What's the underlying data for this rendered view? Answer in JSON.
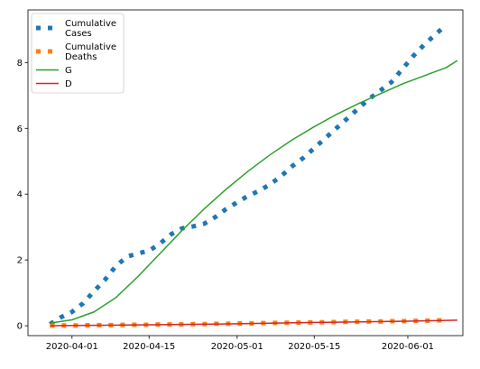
{
  "chart_data": {
    "type": "line",
    "grid": false,
    "legend_placement": "top-left",
    "xlabel": "",
    "ylabel": "",
    "title": "",
    "x_range": [
      "2020-03-24",
      "2020-06-11"
    ],
    "ylim": [
      -0.3,
      9.6
    ],
    "x_ticks": [
      {
        "date": "2020-04-01",
        "label": "2020-04-01"
      },
      {
        "date": "2020-04-15",
        "label": "2020-04-15"
      },
      {
        "date": "2020-05-01",
        "label": "2020-05-01"
      },
      {
        "date": "2020-05-15",
        "label": "2020-05-15"
      },
      {
        "date": "2020-06-01",
        "label": "2020-06-01"
      }
    ],
    "y_ticks": [
      0,
      2,
      4,
      6,
      8
    ],
    "series": [
      {
        "name": "Cumulative\nCases",
        "legend_lines": [
          "Cumulative",
          "Cases"
        ],
        "style": "dotted",
        "color": "#1f77b4",
        "points": [
          [
            "2020-03-28",
            0.05
          ],
          [
            "2020-03-30",
            0.26
          ],
          [
            "2020-04-01",
            0.42
          ],
          [
            "2020-04-03",
            0.68
          ],
          [
            "2020-04-05",
            1.05
          ],
          [
            "2020-04-07",
            1.4
          ],
          [
            "2020-04-09",
            1.82
          ],
          [
            "2020-04-11",
            2.1
          ],
          [
            "2020-04-13",
            2.2
          ],
          [
            "2020-04-15",
            2.28
          ],
          [
            "2020-04-17",
            2.5
          ],
          [
            "2020-04-19",
            2.78
          ],
          [
            "2020-04-21",
            2.96
          ],
          [
            "2020-04-23",
            3.02
          ],
          [
            "2020-04-25",
            3.1
          ],
          [
            "2020-04-27",
            3.3
          ],
          [
            "2020-04-29",
            3.55
          ],
          [
            "2020-05-01",
            3.75
          ],
          [
            "2020-05-03",
            3.95
          ],
          [
            "2020-05-05",
            4.1
          ],
          [
            "2020-05-07",
            4.3
          ],
          [
            "2020-05-09",
            4.55
          ],
          [
            "2020-05-11",
            4.85
          ],
          [
            "2020-05-13",
            5.1
          ],
          [
            "2020-05-15",
            5.4
          ],
          [
            "2020-05-17",
            5.7
          ],
          [
            "2020-05-19",
            6.0
          ],
          [
            "2020-05-21",
            6.3
          ],
          [
            "2020-05-23",
            6.6
          ],
          [
            "2020-05-25",
            6.9
          ],
          [
            "2020-05-27",
            7.15
          ],
          [
            "2020-05-29",
            7.4
          ],
          [
            "2020-05-31",
            7.8
          ],
          [
            "2020-06-02",
            8.2
          ],
          [
            "2020-06-04",
            8.55
          ],
          [
            "2020-06-06",
            8.85
          ],
          [
            "2020-06-08",
            9.15
          ]
        ]
      },
      {
        "name": "Cumulative\nDeaths",
        "legend_lines": [
          "Cumulative",
          "Deaths"
        ],
        "style": "dotted",
        "color": "#ff7f0e",
        "points": [
          [
            "2020-03-28",
            0.0
          ],
          [
            "2020-03-30",
            0.01
          ],
          [
            "2020-04-01",
            0.01
          ],
          [
            "2020-04-03",
            0.01
          ],
          [
            "2020-04-05",
            0.02
          ],
          [
            "2020-04-07",
            0.02
          ],
          [
            "2020-04-09",
            0.02
          ],
          [
            "2020-04-11",
            0.03
          ],
          [
            "2020-04-13",
            0.03
          ],
          [
            "2020-04-15",
            0.03
          ],
          [
            "2020-04-17",
            0.04
          ],
          [
            "2020-04-19",
            0.04
          ],
          [
            "2020-04-21",
            0.04
          ],
          [
            "2020-04-23",
            0.05
          ],
          [
            "2020-04-25",
            0.05
          ],
          [
            "2020-04-27",
            0.06
          ],
          [
            "2020-04-29",
            0.06
          ],
          [
            "2020-05-01",
            0.07
          ],
          [
            "2020-05-03",
            0.07
          ],
          [
            "2020-05-05",
            0.08
          ],
          [
            "2020-05-07",
            0.08
          ],
          [
            "2020-05-09",
            0.09
          ],
          [
            "2020-05-11",
            0.09
          ],
          [
            "2020-05-13",
            0.1
          ],
          [
            "2020-05-15",
            0.1
          ],
          [
            "2020-05-17",
            0.11
          ],
          [
            "2020-05-19",
            0.11
          ],
          [
            "2020-05-21",
            0.12
          ],
          [
            "2020-05-23",
            0.12
          ],
          [
            "2020-05-25",
            0.13
          ],
          [
            "2020-05-27",
            0.13
          ],
          [
            "2020-05-29",
            0.14
          ],
          [
            "2020-05-31",
            0.14
          ],
          [
            "2020-06-02",
            0.15
          ],
          [
            "2020-06-04",
            0.15
          ],
          [
            "2020-06-06",
            0.16
          ],
          [
            "2020-06-08",
            0.17
          ]
        ]
      },
      {
        "name": "G",
        "legend_lines": [
          "G"
        ],
        "style": "solid",
        "color": "#2ca02c",
        "points": [
          [
            "2020-03-28",
            0.08
          ],
          [
            "2020-04-01",
            0.18
          ],
          [
            "2020-04-05",
            0.42
          ],
          [
            "2020-04-09",
            0.86
          ],
          [
            "2020-04-13",
            1.5
          ],
          [
            "2020-04-17",
            2.2
          ],
          [
            "2020-04-21",
            2.9
          ],
          [
            "2020-04-25",
            3.55
          ],
          [
            "2020-04-29",
            4.15
          ],
          [
            "2020-05-03",
            4.7
          ],
          [
            "2020-05-07",
            5.2
          ],
          [
            "2020-05-11",
            5.65
          ],
          [
            "2020-05-15",
            6.05
          ],
          [
            "2020-05-19",
            6.42
          ],
          [
            "2020-05-23",
            6.75
          ],
          [
            "2020-05-27",
            7.05
          ],
          [
            "2020-05-31",
            7.35
          ],
          [
            "2020-06-04",
            7.6
          ],
          [
            "2020-06-08",
            7.85
          ],
          [
            "2020-06-10",
            8.06
          ]
        ]
      },
      {
        "name": "D",
        "legend_lines": [
          "D"
        ],
        "style": "solid",
        "color": "#d62728",
        "points": [
          [
            "2020-03-28",
            0.0
          ],
          [
            "2020-04-15",
            0.03
          ],
          [
            "2020-05-01",
            0.06
          ],
          [
            "2020-05-15",
            0.1
          ],
          [
            "2020-06-01",
            0.14
          ],
          [
            "2020-06-10",
            0.17
          ]
        ]
      }
    ]
  }
}
